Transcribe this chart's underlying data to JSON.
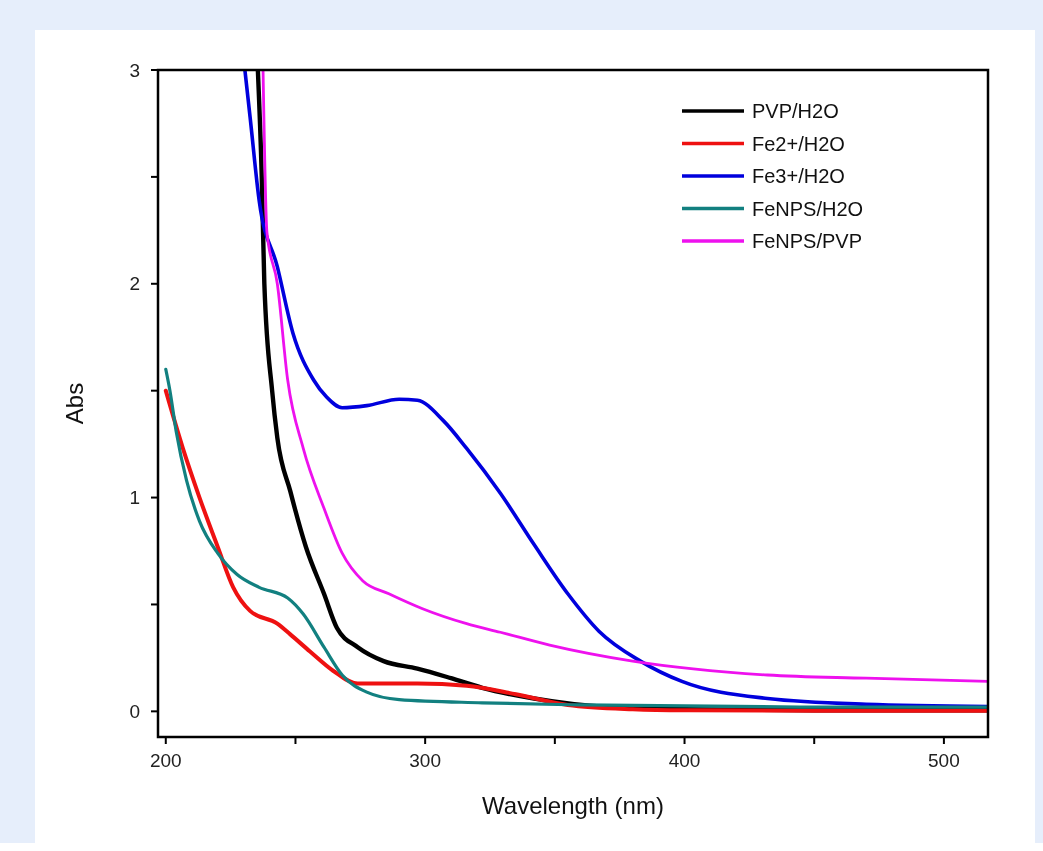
{
  "chart_data": {
    "type": "line",
    "xlabel": "Wavelength (nm)",
    "ylabel": "Abs",
    "xlim": [
      197,
      517
    ],
    "ylim": [
      -0.12,
      3
    ],
    "xticks": [
      200,
      {
        "value": 250,
        "label": null
      },
      300,
      {
        "value": 350,
        "label": null
      },
      400,
      {
        "value": 450,
        "label": null
      },
      500
    ],
    "yticks": [
      0,
      {
        "value": 0.5,
        "label": null
      },
      1,
      {
        "value": 1.5,
        "label": null
      },
      2,
      {
        "value": 2.5,
        "label": null
      },
      3
    ],
    "grid": false,
    "legend": "top right",
    "line_style": "solid",
    "marker": "none",
    "series": [
      {
        "name": "PVP/H2O",
        "color": "#000000",
        "x": [
          235.5,
          237,
          238,
          241,
          243,
          248,
          254,
          261,
          266,
          274,
          284,
          297,
          310,
          322,
          342,
          370,
          400,
          450,
          517
        ],
        "values": [
          3,
          2.5,
          2.0,
          1.5,
          1.28,
          1.03,
          0.77,
          0.55,
          0.39,
          0.3,
          0.235,
          0.2,
          0.155,
          0.11,
          0.06,
          0.02,
          0.01,
          0.005,
          0.005
        ]
      },
      {
        "name": "Fe2+/H2O",
        "color": "#ee1111",
        "x": [
          200,
          206.6,
          213,
          220,
          226,
          232.5,
          243,
          248,
          255.6,
          264.5,
          274,
          297,
          316,
          335,
          355,
          380,
          400,
          450,
          517
        ],
        "values": [
          1.5,
          1.23,
          1.0,
          0.77,
          0.58,
          0.47,
          0.41,
          0.36,
          0.28,
          0.19,
          0.13,
          0.13,
          0.12,
          0.08,
          0.03,
          0.01,
          0.005,
          0.003,
          0.003
        ]
      },
      {
        "name": "Fe3+/H2O",
        "color": "#0000dd",
        "x": [
          230.5,
          232.5,
          236,
          243,
          249,
          257,
          262,
          268,
          277.5,
          290,
          297,
          307,
          316,
          329,
          342,
          355,
          367,
          383,
          399,
          432,
          470,
          517
        ],
        "values": [
          3,
          2.78,
          2.39,
          2.08,
          1.77,
          1.55,
          1.47,
          1.42,
          1.43,
          1.46,
          1.455,
          1.36,
          1.23,
          1.02,
          0.78,
          0.55,
          0.375,
          0.235,
          0.14,
          0.06,
          0.033,
          0.023
        ]
      },
      {
        "name": "FeNPS/H2O",
        "color": "#128080",
        "x": [
          200,
          201.6,
          204,
          208,
          213,
          220,
          227.5,
          236,
          247,
          253,
          261,
          268,
          277.5,
          290,
          322,
          360,
          450,
          517
        ],
        "values": [
          1.6,
          1.5,
          1.31,
          1.08,
          0.89,
          0.74,
          0.64,
          0.58,
          0.53,
          0.455,
          0.3,
          0.17,
          0.09,
          0.055,
          0.04,
          0.03,
          0.02,
          0.02
        ]
      },
      {
        "name": "FeNPS/PVP",
        "color": "#ee11ee",
        "x": [
          237.5,
          239,
          243,
          247,
          253,
          261,
          268,
          276,
          286,
          299,
          316,
          329,
          348,
          380,
          432,
          470,
          517
        ],
        "values": [
          3,
          2.24,
          2.0,
          1.55,
          1.23,
          0.95,
          0.74,
          0.61,
          0.55,
          0.48,
          0.41,
          0.37,
          0.31,
          0.235,
          0.17,
          0.155,
          0.14
        ]
      }
    ]
  }
}
